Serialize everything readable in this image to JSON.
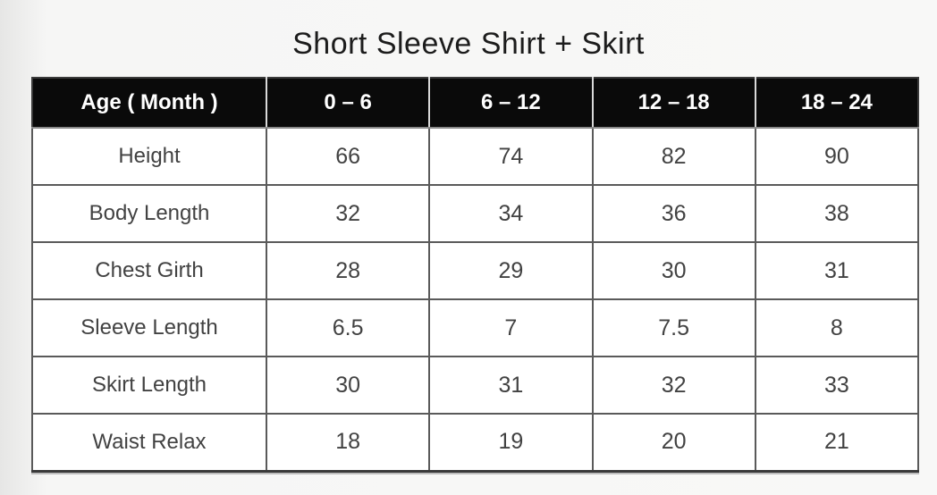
{
  "title": "Short Sleeve Shirt + Skirt",
  "table": {
    "headers": [
      "Age ( Month )",
      "0 – 6",
      "6 – 12",
      "12 – 18",
      "18 – 24"
    ],
    "rows": [
      {
        "label": "Height",
        "values": [
          "66",
          "74",
          "82",
          "90"
        ]
      },
      {
        "label": "Body Length",
        "values": [
          "32",
          "34",
          "36",
          "38"
        ]
      },
      {
        "label": "Chest Girth",
        "values": [
          "28",
          "29",
          "30",
          "31"
        ]
      },
      {
        "label": "Sleeve Length",
        "values": [
          "6.5",
          "7",
          "7.5",
          "8"
        ]
      },
      {
        "label": "Skirt Length",
        "values": [
          "30",
          "31",
          "32",
          "33"
        ]
      },
      {
        "label": "Waist Relax",
        "values": [
          "18",
          "19",
          "20",
          "21"
        ]
      }
    ]
  },
  "colors": {
    "header_bg": "#0a0a0a",
    "header_text": "#ffffff",
    "body_text": "#424242",
    "border": "#5a5a5a",
    "page_bg": "#f6f6f5"
  }
}
